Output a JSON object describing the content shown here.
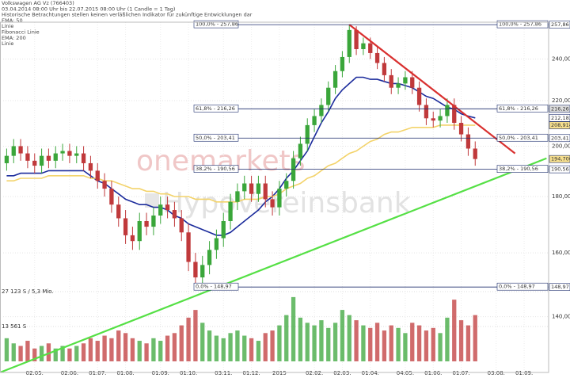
{
  "info_lines": [
    "Volkswagen AG Vz (766403)",
    "03.04.2014 08:00 Uhr bis 22.07.2015 08:00 Uhr (1 Candle = 1 Tag)",
    "Historische Betrachtungen stellen keinen verläßlichen Indikator für zukünftige Entwicklungen dar",
    "EMA: 50",
    "Linie",
    "Fibonacci Linie",
    "EMA: 200",
    "Linie"
  ],
  "watermarks": [
    "onemarkets",
    "HypoVereinsbank"
  ],
  "chart_data": {
    "type": "candlestick",
    "log_scale": true,
    "grid": true,
    "up_color": "#3aa63a",
    "down_color": "#c0393b",
    "categories": [
      null,
      null,
      null,
      null,
      "02.05.",
      null,
      null,
      null,
      null,
      "02.06.",
      null,
      null,
      null,
      "01.07.",
      null,
      null,
      null,
      "01.08.",
      null,
      null,
      null,
      null,
      "01.09.",
      null,
      null,
      null,
      "01.10.",
      null,
      null,
      null,
      null,
      "03.11.",
      null,
      null,
      null,
      "01.12.",
      null,
      null,
      null,
      "2015",
      null,
      null,
      null,
      null,
      "02.02.",
      null,
      null,
      null,
      "02.03.",
      null,
      null,
      null,
      "01.04.",
      null,
      null,
      null,
      null,
      "04.05.",
      null,
      null,
      null,
      "01.06.",
      null,
      null,
      null,
      "01.07.",
      null,
      null,
      null,
      null,
      "03.08.",
      null,
      null,
      null,
      "01.09.",
      null,
      null,
      null
    ],
    "open": [
      193,
      196,
      200,
      197,
      194,
      192,
      196,
      194,
      197,
      198,
      196,
      197,
      193,
      190,
      186,
      183,
      177,
      172,
      166,
      164,
      171,
      169,
      173,
      177,
      175,
      172,
      167,
      157,
      152,
      156,
      161,
      165,
      171,
      178,
      182,
      185,
      181,
      185,
      179,
      176,
      183,
      186,
      195,
      201,
      209,
      213,
      218,
      226,
      234,
      241,
      255,
      245,
      248,
      243,
      238,
      232,
      226,
      228,
      231,
      226,
      218,
      212,
      211,
      213,
      218,
      210,
      205,
      199,
      null,
      null,
      null,
      null,
      null,
      null,
      null,
      null,
      null,
      null
    ],
    "high": [
      199,
      203,
      203,
      200,
      197,
      199,
      199,
      200,
      201,
      201,
      200,
      200,
      196,
      193,
      189,
      186,
      180,
      175,
      169,
      174,
      174,
      176,
      180,
      180,
      178,
      175,
      170,
      160,
      159,
      164,
      168,
      174,
      181,
      185,
      188,
      188,
      188,
      188,
      182,
      186,
      189,
      198,
      204,
      212,
      216,
      221,
      229,
      237,
      244,
      257.86,
      257,
      251,
      251,
      246,
      241,
      235,
      231,
      234,
      234,
      229,
      221,
      215,
      216,
      221,
      221,
      213,
      208,
      202,
      null,
      null,
      null,
      null,
      null,
      null,
      null,
      null,
      null,
      null
    ],
    "low": [
      190,
      193,
      194,
      191,
      189,
      189,
      191,
      191,
      194,
      193,
      193,
      190,
      187,
      183,
      180,
      174,
      169,
      163,
      161,
      161,
      166,
      166,
      170,
      172,
      169,
      164,
      154,
      148.97,
      149,
      153,
      158,
      162,
      168,
      175,
      179,
      178,
      178,
      176,
      173,
      173,
      180,
      183,
      192,
      198,
      206,
      210,
      215,
      223,
      231,
      238,
      242,
      242,
      240,
      235,
      229,
      223,
      223,
      225,
      223,
      215,
      209,
      208,
      208,
      210,
      207,
      202,
      196,
      192,
      null,
      null,
      null,
      null,
      null,
      null,
      null,
      null,
      null,
      null
    ],
    "close": [
      196,
      200,
      197,
      194,
      192,
      196,
      194,
      197,
      198,
      196,
      197,
      193,
      190,
      186,
      183,
      177,
      172,
      166,
      164,
      171,
      169,
      173,
      177,
      175,
      172,
      167,
      157,
      152,
      156,
      161,
      165,
      171,
      178,
      182,
      185,
      181,
      185,
      179,
      176,
      183,
      186,
      195,
      201,
      209,
      213,
      218,
      226,
      234,
      241,
      255,
      245,
      248,
      243,
      238,
      232,
      226,
      228,
      231,
      226,
      218,
      212,
      211,
      213,
      218,
      210,
      205,
      199,
      194.7,
      null,
      null,
      null,
      null,
      null,
      null,
      null,
      null,
      null,
      null
    ],
    "ema": [
      {
        "color": "#1c2c9c",
        "values": [
          188,
          188,
          189,
          189,
          189,
          189,
          190,
          190,
          190,
          190,
          190,
          190,
          188,
          186,
          185,
          183,
          181,
          179,
          178,
          177,
          177,
          176,
          176,
          175,
          173,
          172,
          170,
          169,
          168,
          167,
          166,
          166,
          167,
          169,
          171,
          173,
          175,
          178,
          180,
          183,
          187,
          190,
          194,
          198,
          204,
          210,
          215,
          221,
          225,
          228,
          231,
          231,
          230,
          230,
          229,
          228,
          228,
          227,
          226,
          224,
          222,
          221,
          219,
          217,
          216,
          214,
          213,
          212.1836,
          null,
          null,
          null,
          null,
          null,
          null,
          null,
          null,
          null,
          null
        ]
      },
      {
        "color": "#f3d36a",
        "values": [
          186,
          186,
          187,
          187,
          187,
          187,
          188,
          188,
          188,
          188,
          188,
          188,
          187,
          187,
          186,
          186,
          185,
          184,
          183,
          183,
          182,
          182,
          181,
          181,
          180,
          180,
          180,
          179,
          179,
          179,
          178,
          178,
          178,
          178,
          179,
          179,
          179,
          180,
          180,
          181,
          183,
          184,
          185,
          187,
          188,
          190,
          192,
          193,
          195,
          197,
          198,
          200,
          202,
          203,
          205,
          206,
          206,
          207,
          208,
          208,
          208,
          208,
          209,
          209,
          209,
          209,
          209,
          208.9146,
          null,
          null,
          null,
          null,
          null,
          null,
          null,
          null,
          null,
          null
        ]
      }
    ],
    "ylim": [
      124.6,
      259.2
    ],
    "yticks": [
      {
        "value": 240,
        "label": "240,000"
      },
      {
        "value": 220,
        "label": "220,000"
      },
      {
        "value": 200,
        "label": "200,000"
      },
      {
        "value": 180,
        "label": "180,000"
      },
      {
        "value": 160,
        "label": "160,000"
      },
      {
        "value": 140,
        "label": "140,000"
      }
    ],
    "fibonacci": {
      "color": "#1c2c6c",
      "levels": [
        {
          "value": 257.86,
          "label": "100,0% - 257,86"
        },
        {
          "value": 216.26,
          "label": "61,8% - 216,26"
        },
        {
          "value": 203.41,
          "label": "50,0% - 203,41"
        },
        {
          "value": 190.56,
          "label": "38,2% - 190,56"
        },
        {
          "value": 148.97,
          "label": "0,0% - 148,97"
        }
      ]
    },
    "price_markers": [
      {
        "value": 257.86,
        "label": "257,86",
        "color": "#ffffff"
      },
      {
        "value": 216.26,
        "label": "216,26",
        "color": "#dddddd"
      },
      {
        "value": 212.1836,
        "label": "212,1836",
        "color": "#ffffff"
      },
      {
        "value": 208.9146,
        "label": "208,9146",
        "color": "#f6df8e"
      },
      {
        "value": 203.41,
        "label": "203,41",
        "color": "#ffffff"
      },
      {
        "value": 194.7,
        "label": "194,700",
        "color": "#f6df8e"
      },
      {
        "value": 190.56,
        "label": "190,56",
        "color": "#ffffff"
      },
      {
        "value": 148.97,
        "label": "148,97",
        "color": "#ffffff"
      }
    ],
    "trendlines": [
      {
        "color": "#d9302f",
        "x": [
          49,
          72.7
        ],
        "y": [
          257.86,
          197
        ]
      },
      {
        "color": "#55e045",
        "x": [
          -0.95,
          77.2
        ],
        "y": [
          124.6,
          195
        ]
      }
    ],
    "volume": {
      "values": [
        9000,
        7000,
        6000,
        8000,
        5000,
        6000,
        7000,
        5000,
        6000,
        5000,
        6000,
        7000,
        9000,
        8000,
        10000,
        9000,
        12000,
        11000,
        9000,
        8000,
        7000,
        9000,
        8000,
        10000,
        11000,
        14000,
        17000,
        20000,
        15000,
        12000,
        10000,
        9000,
        11000,
        12000,
        10000,
        9000,
        8000,
        11000,
        12000,
        14000,
        18000,
        25000,
        17000,
        15000,
        14000,
        16000,
        13000,
        15000,
        20000,
        18000,
        16000,
        14000,
        13000,
        15000,
        12000,
        14000,
        13000,
        11000,
        15000,
        14000,
        12000,
        13000,
        11000,
        17000,
        24000,
        16000,
        14000,
        18000,
        null,
        null,
        null,
        null,
        null,
        null,
        null,
        null,
        null,
        null
      ],
      "ylim": [
        0,
        27123
      ],
      "yticks": [
        {
          "value": 27123,
          "label": "27 123 S / 5,3 Mio."
        },
        {
          "value": 13561,
          "label": "13 561 S"
        }
      ]
    }
  }
}
